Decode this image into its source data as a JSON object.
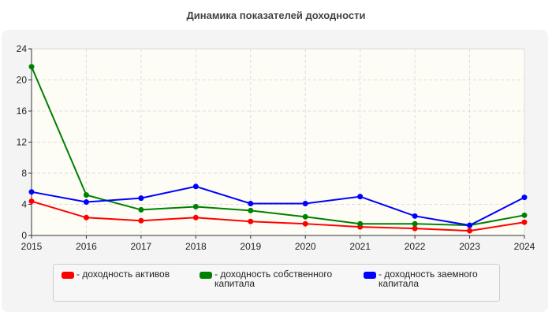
{
  "chart_data": {
    "type": "line",
    "title": "Динамика показателей доходности",
    "x": [
      "2015",
      "2016",
      "2017",
      "2018",
      "2019",
      "2020",
      "2021",
      "2022",
      "2023",
      "2024"
    ],
    "ylim": [
      0,
      24
    ],
    "yticks": [
      0,
      4,
      8,
      12,
      16,
      20,
      24
    ],
    "grid": true,
    "legend_placement": "bottom",
    "series": [
      {
        "name": "- доходность активов",
        "color": "#ff0000",
        "values": [
          4.4,
          2.3,
          1.9,
          2.3,
          1.8,
          1.5,
          1.1,
          0.9,
          0.6,
          1.7
        ]
      },
      {
        "name": "- доходность собственного капитала",
        "color": "#008000",
        "values": [
          21.7,
          5.2,
          3.3,
          3.7,
          3.2,
          2.4,
          1.5,
          1.5,
          1.3,
          2.6
        ]
      },
      {
        "name": "- доходность заемного капитала",
        "color": "#0000ff",
        "values": [
          5.6,
          4.3,
          4.8,
          6.3,
          4.1,
          4.1,
          5.0,
          2.5,
          1.3,
          4.9
        ]
      }
    ]
  }
}
